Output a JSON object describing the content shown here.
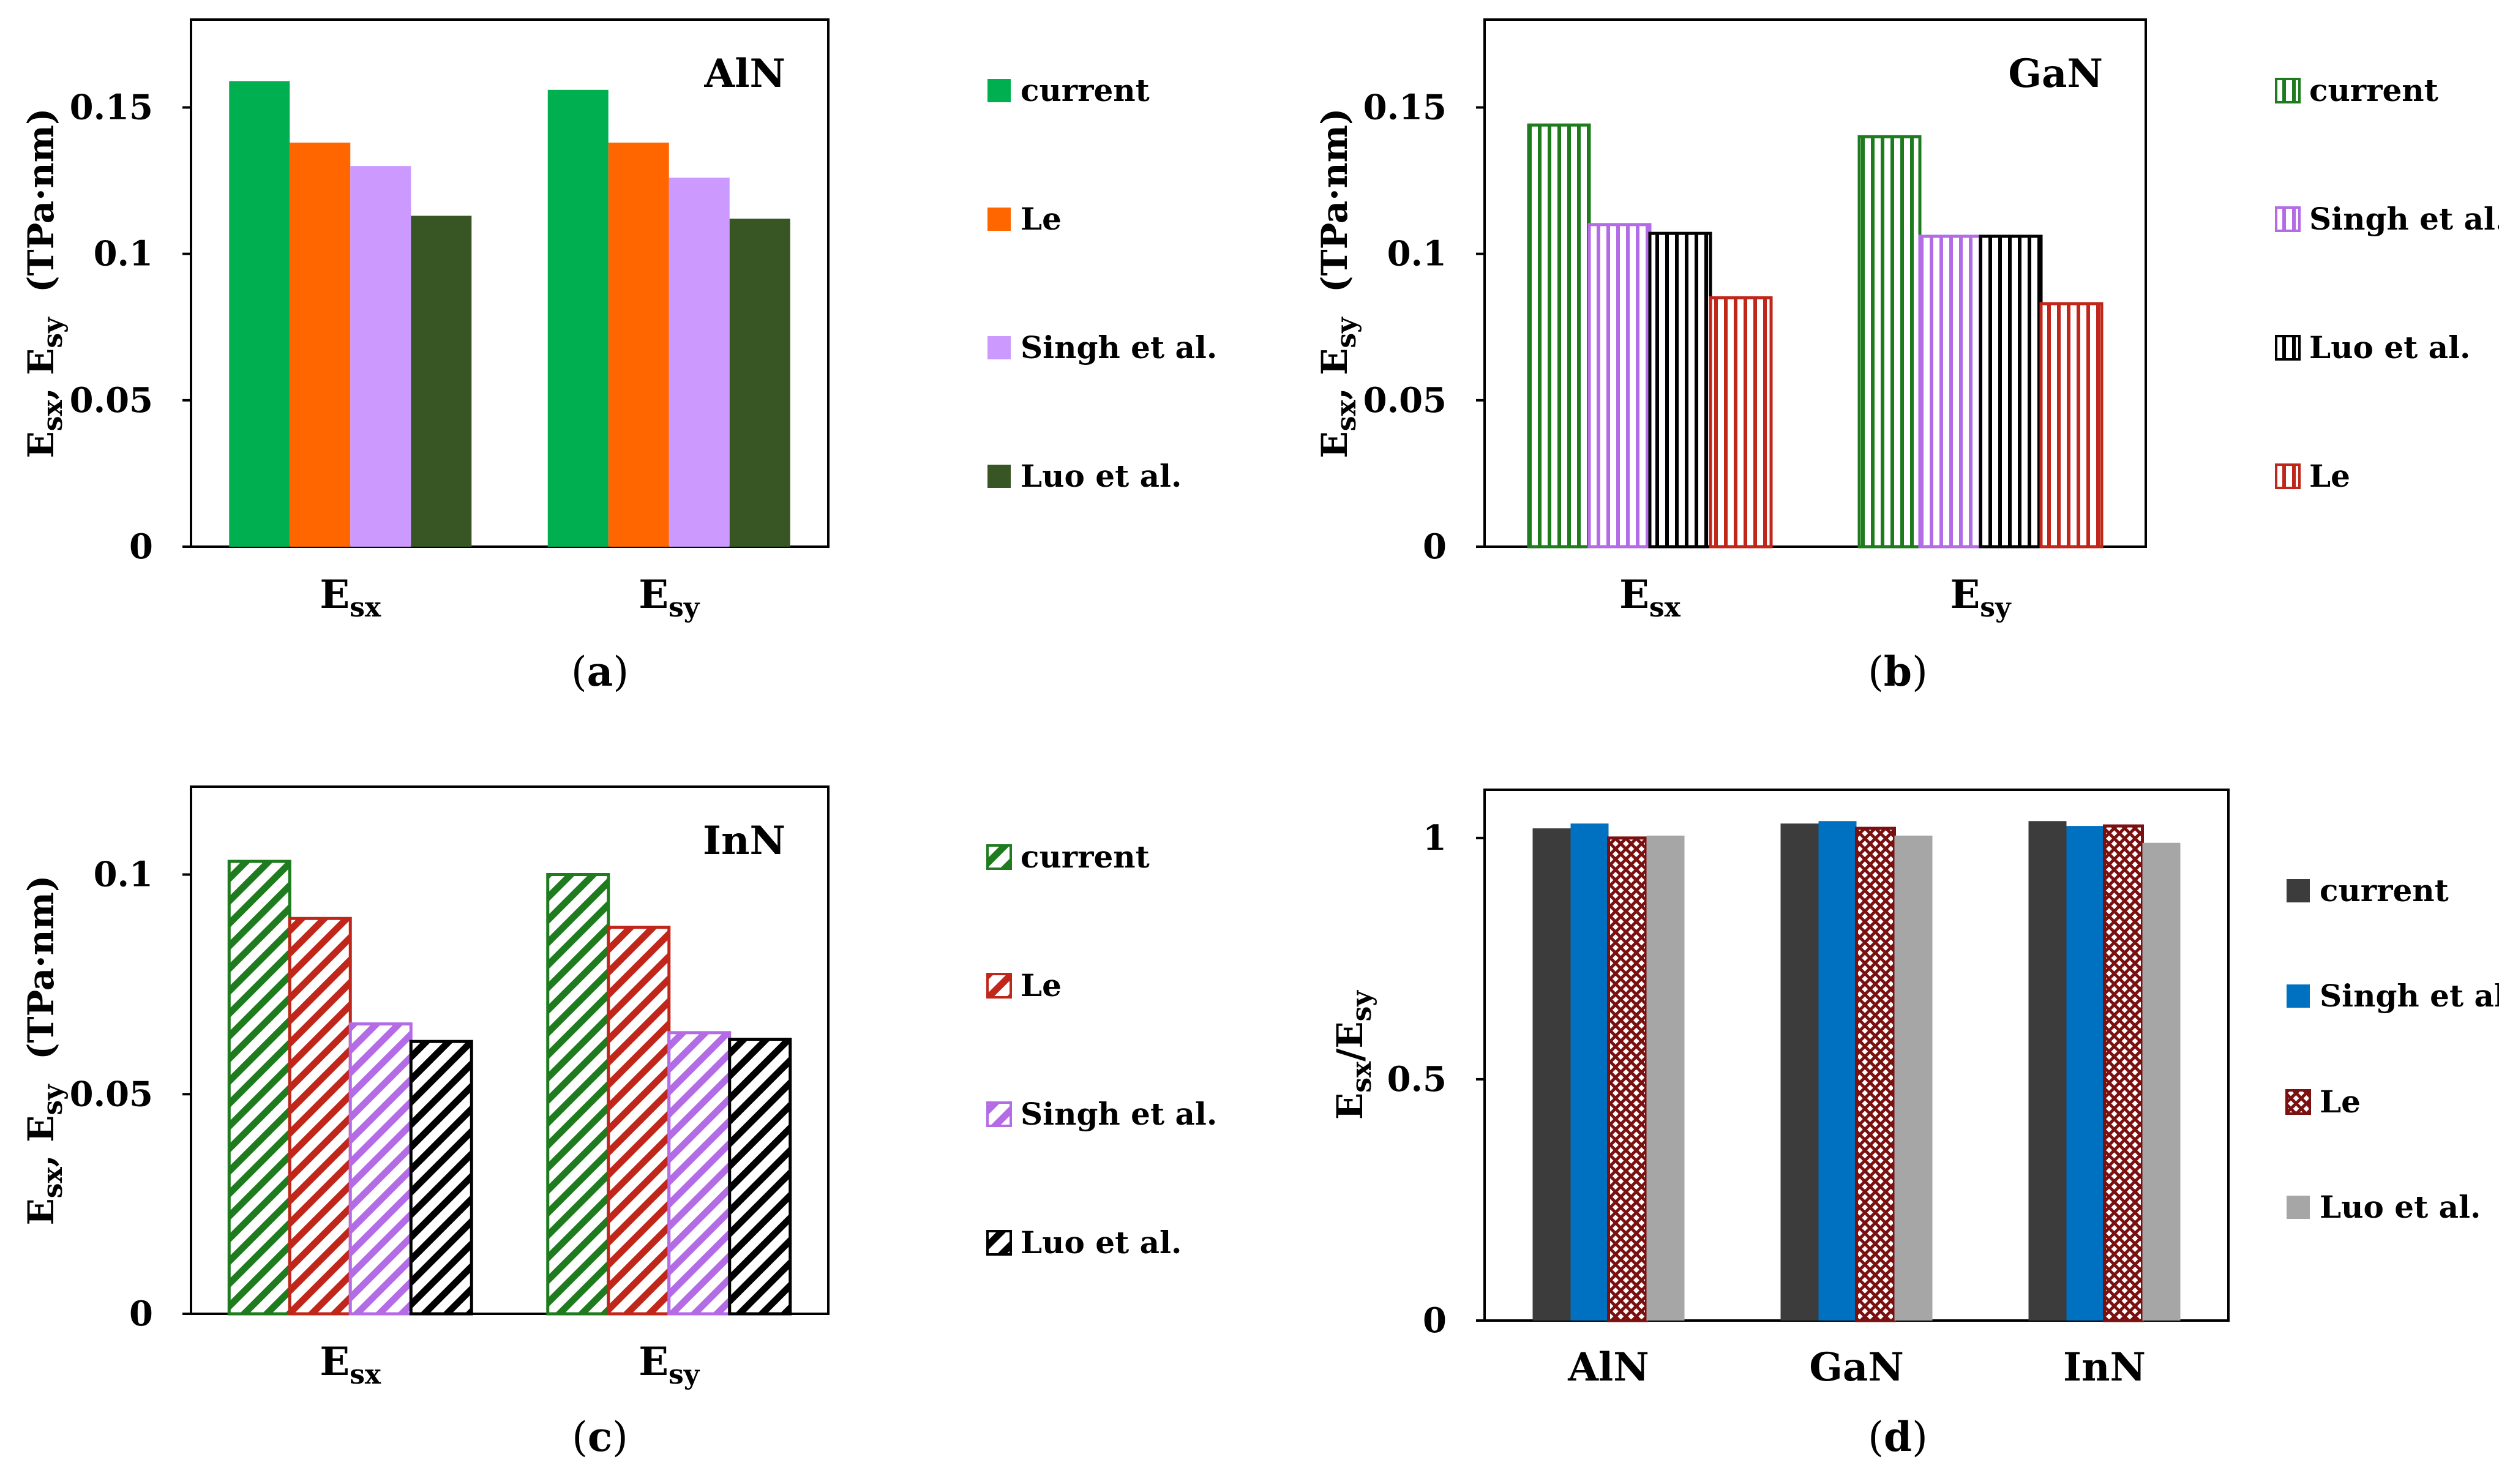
{
  "colors": {
    "green": "#00b050",
    "orange": "#ff6600",
    "lilac": "#cc99ff",
    "darkgreen": "#375623",
    "hgreen": "#1e7b1e",
    "hpurple": "#b36be6",
    "black": "#000000",
    "hred": "#c0261a",
    "darkgray": "#3c3c3c",
    "blue": "#0070c0",
    "darkred": "#7a1010",
    "gray": "#a6a6a6"
  },
  "chart_data": [
    {
      "type": "bar",
      "panel_label": "a",
      "title": "AlN",
      "ylabel": {
        "main1": "E",
        "sub1": "sx",
        "sep": ", ",
        "main2": "E",
        "sub2": "sy",
        "unit": "(TPa·nm)"
      },
      "categories": [
        {
          "main": "E",
          "sub": "sx"
        },
        {
          "main": "E",
          "sub": "sy"
        }
      ],
      "yticks": [
        "0",
        "0.05",
        "0.1",
        "0.15"
      ],
      "ytick_values": [
        0,
        0.05,
        0.1,
        0.15
      ],
      "ylim": [
        0,
        0.18
      ],
      "series": [
        {
          "name": "current",
          "values": [
            0.159,
            0.156
          ],
          "color": "#00b050",
          "pattern": "solid"
        },
        {
          "name": "Le",
          "values": [
            0.138,
            0.138
          ],
          "color": "#ff6600",
          "pattern": "solid"
        },
        {
          "name": "Singh et al.",
          "values": [
            0.13,
            0.126
          ],
          "color": "#cc99ff",
          "pattern": "solid"
        },
        {
          "name": "Luo et al.",
          "values": [
            0.113,
            0.112
          ],
          "color": "#375623",
          "pattern": "solid"
        }
      ]
    },
    {
      "type": "bar",
      "panel_label": "b",
      "title": "GaN",
      "ylabel": {
        "main1": "E",
        "sub1": "sx",
        "sep": ", ",
        "main2": "E",
        "sub2": "sy",
        "unit": "(TPa·nm)"
      },
      "categories": [
        {
          "main": "E",
          "sub": "sx"
        },
        {
          "main": "E",
          "sub": "sy"
        }
      ],
      "yticks": [
        "0",
        "0.05",
        "0.1",
        "0.15"
      ],
      "ytick_values": [
        0,
        0.05,
        0.1,
        0.15
      ],
      "ylim": [
        0,
        0.18
      ],
      "series": [
        {
          "name": "current",
          "values": [
            0.144,
            0.14
          ],
          "color": "#1e7b1e",
          "pattern": "vertical"
        },
        {
          "name": "Singh et al.",
          "values": [
            0.11,
            0.106
          ],
          "color": "#b36be6",
          "pattern": "vertical"
        },
        {
          "name": "Luo et al.",
          "values": [
            0.107,
            0.106
          ],
          "color": "#000000",
          "pattern": "vertical"
        },
        {
          "name": "Le",
          "values": [
            0.085,
            0.083
          ],
          "color": "#c0261a",
          "pattern": "vertical"
        }
      ]
    },
    {
      "type": "bar",
      "panel_label": "c",
      "title": "InN",
      "ylabel": {
        "main1": "E",
        "sub1": "sx",
        "sep": ", ",
        "main2": "E",
        "sub2": "sy",
        "unit": "(TPa·nm)"
      },
      "categories": [
        {
          "main": "E",
          "sub": "sx"
        },
        {
          "main": "E",
          "sub": "sy"
        }
      ],
      "yticks": [
        "0",
        "0.05",
        "0.1"
      ],
      "ytick_values": [
        0,
        0.05,
        0.1
      ],
      "ylim": [
        0,
        0.12
      ],
      "series": [
        {
          "name": "current",
          "values": [
            0.103,
            0.1
          ],
          "color": "#1e7b1e",
          "pattern": "diagonal"
        },
        {
          "name": "Le",
          "values": [
            0.09,
            0.088
          ],
          "color": "#c0261a",
          "pattern": "diagonal"
        },
        {
          "name": "Singh et al.",
          "values": [
            0.066,
            0.064
          ],
          "color": "#b36be6",
          "pattern": "diagonal"
        },
        {
          "name": "Luo et al.",
          "values": [
            0.062,
            0.0625
          ],
          "color": "#000000",
          "pattern": "diagonal"
        }
      ]
    },
    {
      "type": "bar",
      "panel_label": "d",
      "title": "",
      "ylabel": {
        "main1": "E",
        "sub1": "sx",
        "sep": "/",
        "main2": "E",
        "sub2": "sy",
        "unit": ""
      },
      "categories": [
        {
          "main": "AlN",
          "sub": ""
        },
        {
          "main": "GaN",
          "sub": ""
        },
        {
          "main": "InN",
          "sub": ""
        }
      ],
      "yticks": [
        "0",
        "0.5",
        "1"
      ],
      "ytick_values": [
        0,
        0.5,
        1
      ],
      "ylim": [
        0,
        1.1
      ],
      "series": [
        {
          "name": "current",
          "values": [
            1.02,
            1.03,
            1.035
          ],
          "color": "#3c3c3c",
          "pattern": "solid"
        },
        {
          "name": "Singh et al.",
          "values": [
            1.03,
            1.035,
            1.025
          ],
          "color": "#0070c0",
          "pattern": "solid"
        },
        {
          "name": "Le",
          "values": [
            1.0,
            1.02,
            1.025
          ],
          "color": "#7a1010",
          "pattern": "cross"
        },
        {
          "name": "Luo et al.",
          "values": [
            1.005,
            1.005,
            0.99
          ],
          "color": "#a6a6a6",
          "pattern": "solid"
        }
      ]
    }
  ]
}
